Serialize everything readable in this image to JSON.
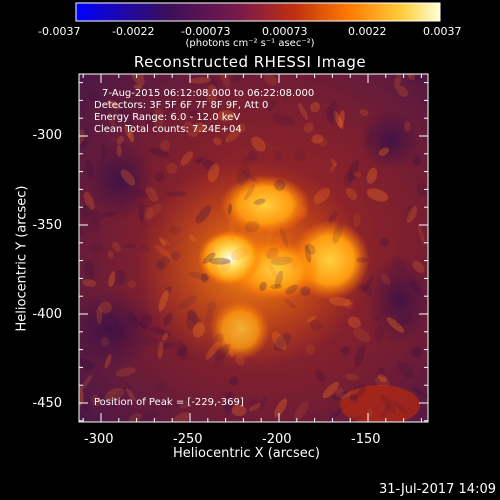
{
  "colorbar": {
    "tick_labels": [
      "-0.0037",
      "-0.0022",
      "-0.00073",
      "0.00073",
      "0.0022",
      "0.0037"
    ],
    "units_label": "(photons cm⁻² s⁻¹ asec⁻²)",
    "colors": [
      "#0000ff",
      "#1b0b3a",
      "#5a1a5a",
      "#a02a2a",
      "#e05010",
      "#ff9a00",
      "#ffe060",
      "#ffffd0"
    ]
  },
  "image": {
    "title": "Reconstructed RHESSI Image",
    "info_lines": [
      "7-Aug-2015 06:12:08.000 to 06:22:08.000",
      "Detectors: 3F 5F 6F 7F 8F 9F, Att 0",
      "Energy Range: 6.0 - 12.0 keV",
      "Clean    Total counts: 7.24E+04"
    ],
    "peak_label": "Position of Peak = [-229,-369]",
    "x_axis": {
      "label": "Heliocentric X (arcsec)",
      "ticks": [
        "-300",
        "-250",
        "-200",
        "-150"
      ]
    },
    "y_axis": {
      "label": "Heliocentric Y (arcsec)",
      "ticks": [
        "-300",
        "-350",
        "-400",
        "-450"
      ]
    }
  },
  "footer": {
    "timestamp": "31-Jul-2017 14:09"
  }
}
